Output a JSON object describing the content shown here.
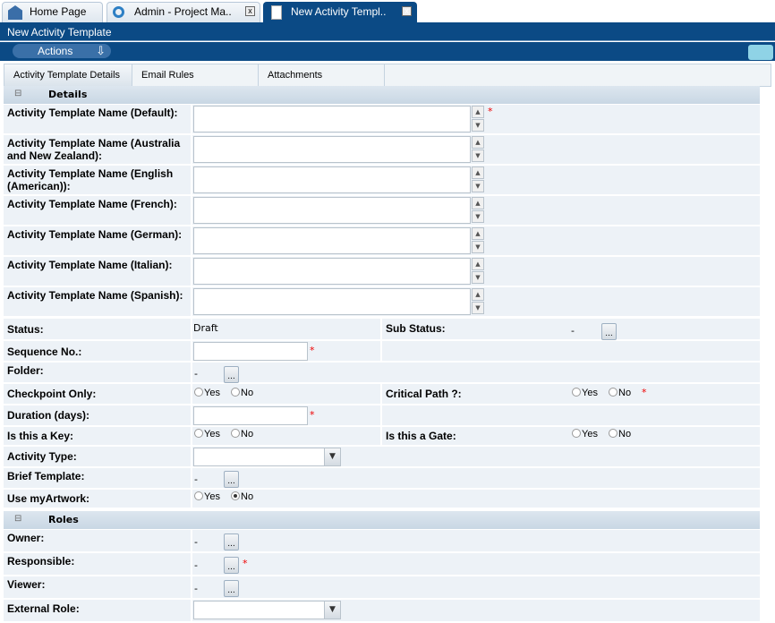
{
  "tabs": [
    {
      "label": "Home Page",
      "icon": "home-icon"
    },
    {
      "label": "Admin - Project Ma..",
      "icon": "gear-icon"
    },
    {
      "label": "New Activity Templ..",
      "icon": "document-icon"
    }
  ],
  "title": "New Activity Template",
  "actions_label": "Actions",
  "subtabs": [
    "Activity Template Details",
    "Email Rules",
    "Attachments"
  ],
  "details": {
    "header": "Details",
    "names": [
      "Activity Template Name (Default):",
      "Activity Template Name (Australia and New Zealand):",
      "Activity Template Name (English (American)):",
      "Activity Template Name (French):",
      "Activity Template Name (German):",
      "Activity Template Name (Italian):",
      "Activity Template Name (Spanish):"
    ],
    "status_label": "Status:",
    "status_value": "Draft",
    "sub_status_label": "Sub Status:",
    "sub_status_value": "-",
    "sequence_label": "Sequence No.:",
    "folder_label": "Folder:",
    "folder_value": "-",
    "checkpoint_label": "Checkpoint Only:",
    "critical_label": "Critical Path ?:",
    "duration_label": "Duration (days):",
    "key_label": "Is this a Key:",
    "gate_label": "Is this a Gate:",
    "activity_type_label": "Activity Type:",
    "brief_label": "Brief Template:",
    "brief_value": "-",
    "myartwork_label": "Use myArtwork:",
    "myartwork_selected": "No",
    "yes": "Yes",
    "no": "No",
    "required": "*",
    "dots": "..."
  },
  "roles": {
    "header": "Roles",
    "owner_label": "Owner:",
    "owner_value": "-",
    "responsible_label": "Responsible:",
    "responsible_value": "-",
    "viewer_label": "Viewer:",
    "viewer_value": "-",
    "external_label": "External Role:"
  }
}
